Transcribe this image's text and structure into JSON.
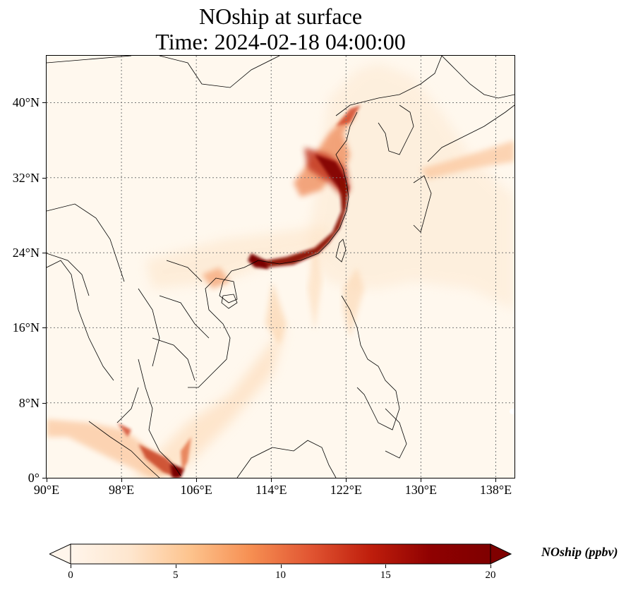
{
  "title": {
    "line1": "NOship at surface",
    "line2": "Time: 2024-02-18 04:00:00"
  },
  "map": {
    "lon_range": [
      90,
      140
    ],
    "lat_range": [
      0,
      45
    ],
    "lat_ticks": [
      {
        "value": 0,
        "label": "0°"
      },
      {
        "value": 8,
        "label": "8°N"
      },
      {
        "value": 16,
        "label": "16°N"
      },
      {
        "value": 24,
        "label": "24°N"
      },
      {
        "value": 32,
        "label": "32°N"
      },
      {
        "value": 40,
        "label": "40°N"
      }
    ],
    "lon_ticks": [
      {
        "value": 90,
        "label": "90°E"
      },
      {
        "value": 98,
        "label": "98°E"
      },
      {
        "value": 106,
        "label": "106°E"
      },
      {
        "value": 114,
        "label": "114°E"
      },
      {
        "value": 122,
        "label": "122°E"
      },
      {
        "value": 130,
        "label": "130°E"
      },
      {
        "value": 138,
        "label": "138°E"
      }
    ],
    "gridlines": true,
    "colors": {
      "background": "#fff8ee",
      "low": "#fee6c8",
      "mid": "#f08050",
      "high": "#d03020",
      "max": "#7a0000"
    }
  },
  "colorbar": {
    "label": "NOship (ppbv)",
    "min": 0,
    "max": 20,
    "extend": "both",
    "ticks": [
      {
        "value": 0,
        "label": "0"
      },
      {
        "value": 5,
        "label": "5"
      },
      {
        "value": 10,
        "label": "10"
      },
      {
        "value": 15,
        "label": "15"
      },
      {
        "value": 20,
        "label": "20"
      }
    ],
    "stops": [
      "#fff5eb",
      "#fee6ce",
      "#fdc38d",
      "#f68f52",
      "#e15532",
      "#bf1e0c",
      "#8f0101",
      "#7f0000"
    ]
  }
}
